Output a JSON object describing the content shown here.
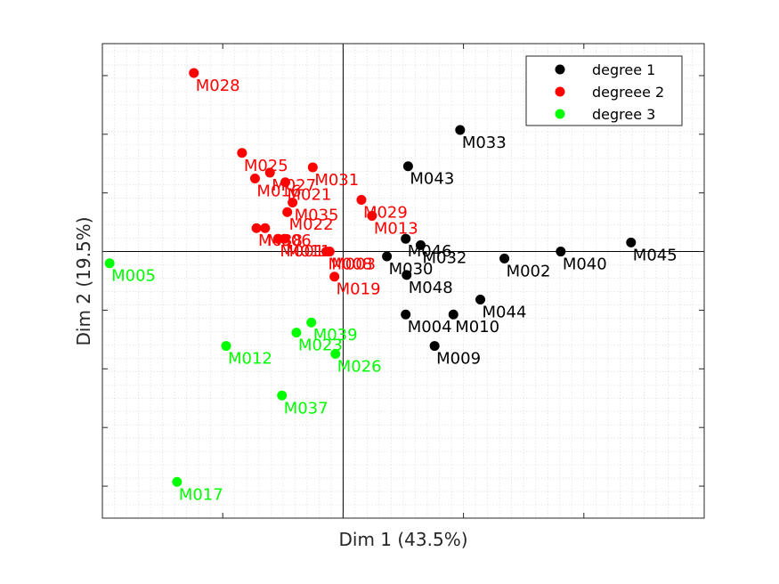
{
  "chart_data": {
    "type": "scatter",
    "xlabel": "Dim 1 (43.5%)",
    "ylabel": "Dim 2 (19.5%)",
    "xlim": [
      -5,
      7.5
    ],
    "ylim": [
      -5,
      3.9
    ],
    "grid": "minor dotted",
    "reference_lines": {
      "x": 0,
      "y": 0
    },
    "legend_position": "top-right",
    "series": [
      {
        "name": "degree 1",
        "color": "#000000",
        "points": [
          {
            "label": "M033",
            "x": 2.43,
            "y": 2.28
          },
          {
            "label": "M043",
            "x": 1.35,
            "y": 1.6
          },
          {
            "label": "M045",
            "x": 5.98,
            "y": 0.17
          },
          {
            "label": "M040",
            "x": 4.52,
            "y": 0.0
          },
          {
            "label": "M002",
            "x": 3.35,
            "y": -0.13
          },
          {
            "label": "M046",
            "x": 1.3,
            "y": 0.24
          },
          {
            "label": "M032",
            "x": 1.61,
            "y": 0.12
          },
          {
            "label": "M030",
            "x": 0.91,
            "y": -0.09
          },
          {
            "label": "M048",
            "x": 1.32,
            "y": -0.44
          },
          {
            "label": "M044",
            "x": 2.85,
            "y": -0.9
          },
          {
            "label": "M004",
            "x": 1.3,
            "y": -1.18
          },
          {
            "label": "M010",
            "x": 2.29,
            "y": -1.18
          },
          {
            "label": "M009",
            "x": 1.9,
            "y": -1.77
          }
        ]
      },
      {
        "name": "degreee 2",
        "color": "#ff0000",
        "points": [
          {
            "label": "M028",
            "x": -3.1,
            "y": 3.35
          },
          {
            "label": "M025",
            "x": -2.1,
            "y": 1.85
          },
          {
            "label": "M031",
            "x": -0.63,
            "y": 1.58
          },
          {
            "label": "M016",
            "x": -1.83,
            "y": 1.37
          },
          {
            "label": "M027",
            "x": -1.52,
            "y": 1.48
          },
          {
            "label": "M021",
            "x": -1.2,
            "y": 1.3
          },
          {
            "label": "M035",
            "x": -1.05,
            "y": 0.92
          },
          {
            "label": "M022",
            "x": -1.16,
            "y": 0.74
          },
          {
            "label": "M029",
            "x": 0.38,
            "y": 0.97
          },
          {
            "label": "M013",
            "x": 0.6,
            "y": 0.67
          },
          {
            "label": "M038",
            "x": -1.8,
            "y": 0.44
          },
          {
            "label": "M006",
            "x": -1.62,
            "y": 0.44
          },
          {
            "label": "M001",
            "x": -1.35,
            "y": 0.24
          },
          {
            "label": "M011",
            "x": -1.22,
            "y": 0.24
          },
          {
            "label": "M008",
            "x": -0.35,
            "y": 0.0
          },
          {
            "label": "M003",
            "x": -0.28,
            "y": 0.0
          },
          {
            "label": "M019",
            "x": -0.18,
            "y": -0.47
          }
        ]
      },
      {
        "name": "degree 3",
        "color": "#00ff00",
        "points": [
          {
            "label": "M005",
            "x": -4.85,
            "y": -0.22
          },
          {
            "label": "M039",
            "x": -0.66,
            "y": -1.33
          },
          {
            "label": "M023",
            "x": -0.97,
            "y": -1.52
          },
          {
            "label": "M012",
            "x": -2.43,
            "y": -1.77
          },
          {
            "label": "M026",
            "x": -0.16,
            "y": -1.92
          },
          {
            "label": "M037",
            "x": -1.27,
            "y": -2.7
          },
          {
            "label": "M017",
            "x": -3.45,
            "y": -4.32
          }
        ]
      }
    ]
  }
}
